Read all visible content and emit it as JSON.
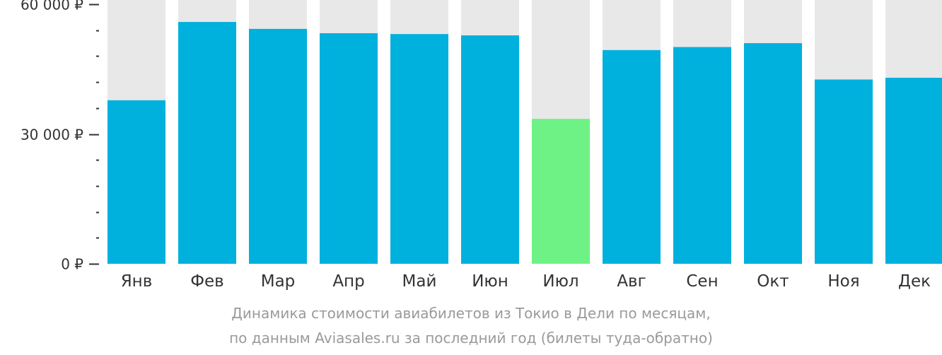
{
  "chart_data": {
    "type": "bar",
    "categories": [
      "Янв",
      "Фев",
      "Мар",
      "Апр",
      "Май",
      "Июн",
      "Июл",
      "Авг",
      "Сен",
      "Окт",
      "Ноя",
      "Дек"
    ],
    "values": [
      37800,
      55900,
      54300,
      53300,
      53100,
      52800,
      33500,
      49400,
      50100,
      51000,
      42600,
      43000
    ],
    "highlight_index": 6,
    "ylim": [
      0,
      60000
    ],
    "y_major_ticks": [
      {
        "value": 0,
        "label": "0 ₽"
      },
      {
        "value": 30000,
        "label": "30 000 ₽"
      },
      {
        "value": 60000,
        "label": "60 000 ₽"
      }
    ],
    "y_minor_step": 6000,
    "grid": false,
    "background_bars": true,
    "colors": {
      "bar": "#00b0dd",
      "highlight": "#6ef285",
      "background_bar": "#e8e8e8",
      "axis": "#333333"
    },
    "caption": [
      "Динамика стоимости авиабилетов из Токио в Дели по месяцам,",
      "по данным Aviasales.ru за последний год (билеты туда-обратно)"
    ]
  }
}
